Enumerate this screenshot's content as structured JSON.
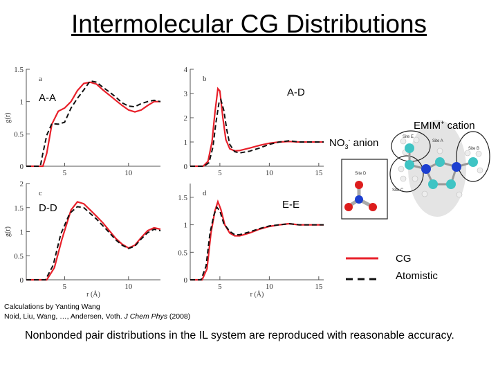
{
  "title": "Intermolecular CG Distributions",
  "labels": {
    "emim": "EMIM",
    "emim_sup": "+",
    "emim_rest": " cation",
    "no3_base": "NO",
    "no3_sub": "3",
    "no3_sup": "-",
    "no3_rest": " anion",
    "legend_cg": "CG",
    "legend_atomistic": "Atomistic"
  },
  "molecule": {
    "site_e": "Site E",
    "site_a": "Site A",
    "site_b": "Site B",
    "site_c": "Site C",
    "site_d": "Site D"
  },
  "credit": {
    "line1": "Calculations by Yanting Wang",
    "line2a": "Noid, Liu, Wang, …, Andersen, Voth. ",
    "line2b": "J Chem Phys",
    "line2c": " (2008)"
  },
  "summary": "Nonbonded pair distributions in the IL system are reproduced with reasonable accuracy.",
  "colors": {
    "cg": "#e8202a",
    "atomistic": "#111111",
    "carbon": "#3fc4c4",
    "nitrogen": "#1d3fd0",
    "oxygen": "#dd1d1d",
    "hydrogen": "#eeeeee"
  },
  "chart_data": [
    {
      "type": "line",
      "panel": "a",
      "pair_label": "A-A",
      "xlabel": "",
      "ylabel": "g(r)",
      "xlim": [
        2,
        12.5
      ],
      "ylim": [
        0,
        1.5
      ],
      "xticks": [
        5,
        10
      ],
      "yticks": [
        0,
        0.5,
        1,
        1.5
      ],
      "series": [
        {
          "name": "CG",
          "x": [
            2,
            3.3,
            3.6,
            4.0,
            4.5,
            5.0,
            5.5,
            6.0,
            6.5,
            7.0,
            7.5,
            8.0,
            8.5,
            9.0,
            9.5,
            10.0,
            10.5,
            11.0,
            11.5,
            12.0,
            12.5
          ],
          "y": [
            0,
            0,
            0.2,
            0.65,
            0.85,
            0.9,
            1.0,
            1.17,
            1.28,
            1.3,
            1.27,
            1.18,
            1.1,
            1.02,
            0.94,
            0.87,
            0.84,
            0.87,
            0.94,
            1.0,
            1.0
          ]
        },
        {
          "name": "Atomistic",
          "x": [
            2,
            3.1,
            3.3,
            3.6,
            4.0,
            4.5,
            5.0,
            5.5,
            6.0,
            6.5,
            7.0,
            7.5,
            8.0,
            8.5,
            9.0,
            9.5,
            10.0,
            10.5,
            11.0,
            11.5,
            12.0,
            12.5
          ],
          "y": [
            0,
            0,
            0.2,
            0.48,
            0.66,
            0.65,
            0.68,
            0.9,
            1.05,
            1.18,
            1.32,
            1.3,
            1.22,
            1.15,
            1.07,
            0.98,
            0.93,
            0.92,
            0.97,
            1.0,
            1.02,
            1.0
          ]
        }
      ]
    },
    {
      "type": "line",
      "panel": "b",
      "pair_label": "A-D",
      "xlabel": "",
      "ylabel": "",
      "xlim": [
        2,
        15.5
      ],
      "ylim": [
        0,
        4
      ],
      "xticks": [
        5,
        10,
        15
      ],
      "yticks": [
        0,
        1,
        2,
        3,
        4
      ],
      "series": [
        {
          "name": "CG",
          "x": [
            2,
            3.3,
            3.8,
            4.2,
            4.5,
            4.8,
            5.0,
            5.3,
            5.6,
            6.0,
            6.5,
            7.0,
            8.0,
            9.0,
            10.0,
            11.0,
            12.0,
            13.0,
            14.0,
            15.5
          ],
          "y": [
            0,
            0,
            0.2,
            1.0,
            2.2,
            3.2,
            3.1,
            2.0,
            1.1,
            0.72,
            0.63,
            0.65,
            0.75,
            0.86,
            0.95,
            1.0,
            1.02,
            1.0,
            1.0,
            1.0
          ]
        },
        {
          "name": "Atomistic",
          "x": [
            2,
            3.4,
            3.9,
            4.3,
            4.6,
            4.9,
            5.1,
            5.4,
            5.7,
            6.0,
            6.5,
            7.0,
            8.0,
            9.0,
            10.0,
            11.0,
            12.0,
            13.0,
            14.0,
            15.5
          ],
          "y": [
            0,
            0,
            0.15,
            0.8,
            1.8,
            2.6,
            2.75,
            2.3,
            1.5,
            0.9,
            0.6,
            0.55,
            0.62,
            0.75,
            0.9,
            1.0,
            1.05,
            1.0,
            1.0,
            1.0
          ]
        }
      ]
    },
    {
      "type": "line",
      "panel": "c",
      "pair_label": "D-D",
      "xlabel": "r (Å)",
      "ylabel": "g(r)",
      "xlim": [
        2,
        12.5
      ],
      "ylim": [
        0,
        2
      ],
      "xticks": [
        5,
        10
      ],
      "yticks": [
        0,
        0.5,
        1,
        1.5,
        2
      ],
      "series": [
        {
          "name": "CG",
          "x": [
            2,
            3.6,
            4.2,
            4.8,
            5.5,
            6.0,
            6.5,
            7.0,
            7.5,
            8.0,
            8.5,
            9.0,
            9.5,
            10.0,
            10.5,
            11.0,
            11.5,
            12.0,
            12.5
          ],
          "y": [
            0,
            0,
            0.25,
            0.85,
            1.45,
            1.62,
            1.58,
            1.45,
            1.32,
            1.18,
            1.02,
            0.86,
            0.74,
            0.66,
            0.72,
            0.88,
            1.02,
            1.08,
            1.05
          ]
        },
        {
          "name": "Atomistic",
          "x": [
            2,
            3.5,
            4.1,
            4.7,
            5.4,
            6.0,
            6.5,
            7.0,
            7.5,
            8.0,
            8.5,
            9.0,
            9.5,
            10.0,
            10.5,
            11.0,
            11.5,
            12.0,
            12.5
          ],
          "y": [
            0,
            0,
            0.3,
            0.95,
            1.38,
            1.52,
            1.5,
            1.38,
            1.26,
            1.12,
            0.98,
            0.83,
            0.72,
            0.65,
            0.7,
            0.85,
            0.98,
            1.05,
            1.02
          ]
        }
      ]
    },
    {
      "type": "line",
      "panel": "d",
      "pair_label": "E-E",
      "xlabel": "r (Å)",
      "ylabel": "",
      "xlim": [
        2,
        15.5
      ],
      "ylim": [
        0,
        1.75
      ],
      "xticks": [
        5,
        10,
        15
      ],
      "yticks": [
        0,
        0.5,
        1,
        1.5
      ],
      "series": [
        {
          "name": "CG",
          "x": [
            2,
            3.2,
            3.7,
            4.1,
            4.5,
            4.8,
            5.1,
            5.5,
            6.0,
            6.5,
            7.0,
            8.0,
            9.0,
            10.0,
            11.0,
            12.0,
            13.0,
            14.0,
            15.5
          ],
          "y": [
            0,
            0,
            0.2,
            0.85,
            1.25,
            1.42,
            1.28,
            1.0,
            0.85,
            0.8,
            0.8,
            0.85,
            0.92,
            0.97,
            1.0,
            1.02,
            1.0,
            1.0,
            1.0
          ]
        },
        {
          "name": "Atomistic",
          "x": [
            2,
            3.1,
            3.6,
            4.0,
            4.4,
            4.7,
            5.0,
            5.4,
            6.0,
            6.5,
            7.0,
            8.0,
            9.0,
            10.0,
            11.0,
            12.0,
            13.0,
            14.0,
            15.5
          ],
          "y": [
            0,
            0,
            0.25,
            0.85,
            1.18,
            1.32,
            1.25,
            1.02,
            0.88,
            0.82,
            0.82,
            0.87,
            0.93,
            0.98,
            1.0,
            1.02,
            1.0,
            1.0,
            1.0
          ]
        }
      ]
    }
  ]
}
